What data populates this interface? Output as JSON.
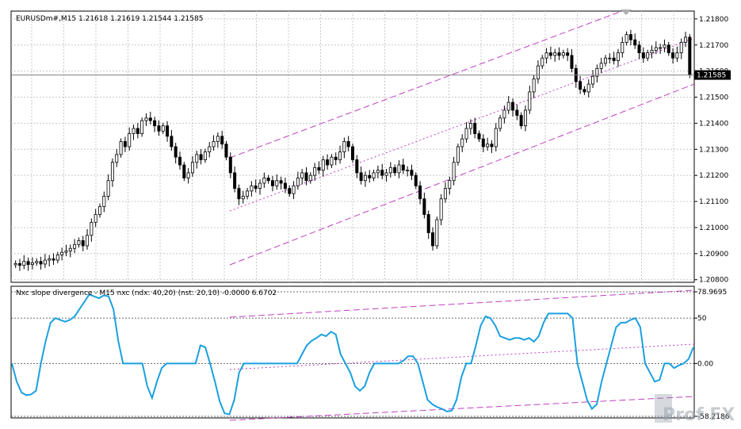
{
  "main_chart": {
    "title": "EURUSDm#,M15  1.21618 1.21619 1.21544 1.21585",
    "price_labels": [
      "1.21800",
      "1.21700",
      "1.21600",
      "1.21500",
      "1.21400",
      "1.21300",
      "1.21200",
      "1.21100",
      "1.21000",
      "1.20900",
      "1.20800"
    ],
    "price_levels": [
      1.218,
      1.217,
      1.216,
      1.215,
      1.214,
      1.213,
      1.212,
      1.211,
      1.21,
      1.209,
      1.208
    ],
    "current_price_label": "1.21585",
    "current_price": 1.21585,
    "colors": {
      "bull": "#000000",
      "bear": "#000000",
      "bull_body": "#ffffff",
      "bear_body": "#000000",
      "channel": "#c040c0",
      "grid": "#c0c0c0",
      "current_line": "#808080"
    }
  },
  "indicator": {
    "title": "Nxc slope divergence - M15 nxc (ndx: 40,20) (nst: 20,10) -0.0000 6.6702",
    "scale_labels": [
      "78.9695",
      "50",
      "0.00",
      "-58.2186"
    ],
    "scale_values": [
      78.9695,
      50,
      0,
      -58.2186
    ],
    "line_color": "#1aa0e0",
    "channel_color": "#c040c0"
  },
  "watermark": {
    "text": "Prof FX"
  },
  "chart_data": [
    {
      "type": "candlestick",
      "title": "EURUSDm#,M15  1.21618 1.21619 1.21544 1.21585",
      "ylim": [
        1.2079,
        1.2183
      ],
      "close": [
        1.20862,
        1.20855,
        1.2087,
        1.20858,
        1.20865,
        1.2087,
        1.2086,
        1.20875,
        1.2088,
        1.20875,
        1.20895,
        1.20905,
        1.2091,
        1.2092,
        1.20935,
        1.2095,
        1.2093,
        1.2097,
        1.2102,
        1.2105,
        1.2108,
        1.2112,
        1.2118,
        1.2125,
        1.2128,
        1.2133,
        1.2131,
        1.2136,
        1.2138,
        1.2136,
        1.2141,
        1.2142,
        1.2141,
        1.2139,
        1.2137,
        1.2139,
        1.2135,
        1.2131,
        1.2127,
        1.2124,
        1.2119,
        1.2121,
        1.2125,
        1.2128,
        1.2126,
        1.2129,
        1.2131,
        1.2133,
        1.2135,
        1.2132,
        1.2127,
        1.2121,
        1.2115,
        1.2111,
        1.2112,
        1.2114,
        1.2116,
        1.2115,
        1.2117,
        1.2119,
        1.2118,
        1.2116,
        1.2118,
        1.2117,
        1.2115,
        1.2113,
        1.2116,
        1.2119,
        1.2121,
        1.2118,
        1.212,
        1.2123,
        1.2122,
        1.2126,
        1.2124,
        1.2127,
        1.2126,
        1.2129,
        1.2133,
        1.2131,
        1.2126,
        1.2121,
        1.2118,
        1.212,
        1.2119,
        1.2121,
        1.2122,
        1.212,
        1.2121,
        1.2123,
        1.2121,
        1.2124,
        1.2122,
        1.2122,
        1.212,
        1.2116,
        1.2111,
        1.2105,
        1.2098,
        1.2093,
        1.2103,
        1.2111,
        1.2115,
        1.2118,
        1.2125,
        1.2131,
        1.2134,
        1.2138,
        1.214,
        1.2136,
        1.2134,
        1.2131,
        1.2132,
        1.2131,
        1.2138,
        1.2142,
        1.2145,
        1.2148,
        1.2145,
        1.2143,
        1.2139,
        1.2145,
        1.2152,
        1.2157,
        1.2162,
        1.2165,
        1.2167,
        1.2166,
        1.2167,
        1.2166,
        1.2167,
        1.2166,
        1.2161,
        1.2156,
        1.2153,
        1.2152,
        1.2155,
        1.2158,
        1.2161,
        1.2163,
        1.2165,
        1.2165,
        1.2164,
        1.2167,
        1.2171,
        1.2174,
        1.2172,
        1.217,
        1.2167,
        1.2165,
        1.2167,
        1.2168,
        1.2169,
        1.2169,
        1.217,
        1.2167,
        1.2165,
        1.2167,
        1.2171,
        1.2173,
        1.21585
      ]
    },
    {
      "type": "line",
      "title": "Nxc slope divergence - M15 nxc (ndx: 40,20) (nst: 20,10) -0.0000 6.6702",
      "ylim": [
        -58.2186,
        78.9695
      ],
      "values": [
        0,
        -20,
        -32,
        -35,
        -34,
        -30,
        0,
        25,
        45,
        50,
        48,
        46,
        48,
        52,
        60,
        68,
        76,
        74,
        72,
        75,
        74,
        60,
        25,
        0,
        0,
        0,
        0,
        0,
        -25,
        -38,
        -20,
        -5,
        0,
        0,
        0,
        0,
        0,
        0,
        0,
        20,
        18,
        0,
        -20,
        -42,
        -55,
        -56,
        -40,
        -10,
        0,
        0,
        0,
        0,
        0,
        0,
        0,
        0,
        0,
        0,
        0,
        0,
        10,
        20,
        25,
        28,
        32,
        30,
        35,
        32,
        10,
        0,
        -10,
        -25,
        -30,
        -25,
        -10,
        0,
        0,
        0,
        0,
        0,
        0,
        3,
        8,
        8,
        0,
        -20,
        -40,
        -45,
        -48,
        -50,
        -53,
        -52,
        -40,
        -15,
        0,
        0,
        20,
        42,
        52,
        50,
        42,
        30,
        28,
        26,
        28,
        28,
        26,
        28,
        24,
        30,
        45,
        55,
        55,
        55,
        55,
        55,
        50,
        0,
        -20,
        -40,
        -50,
        -45,
        -20,
        0,
        20,
        40,
        45,
        45,
        48,
        50,
        40,
        0,
        -10,
        -20,
        -18,
        0,
        0,
        -5,
        -2,
        0,
        5,
        18
      ]
    }
  ]
}
